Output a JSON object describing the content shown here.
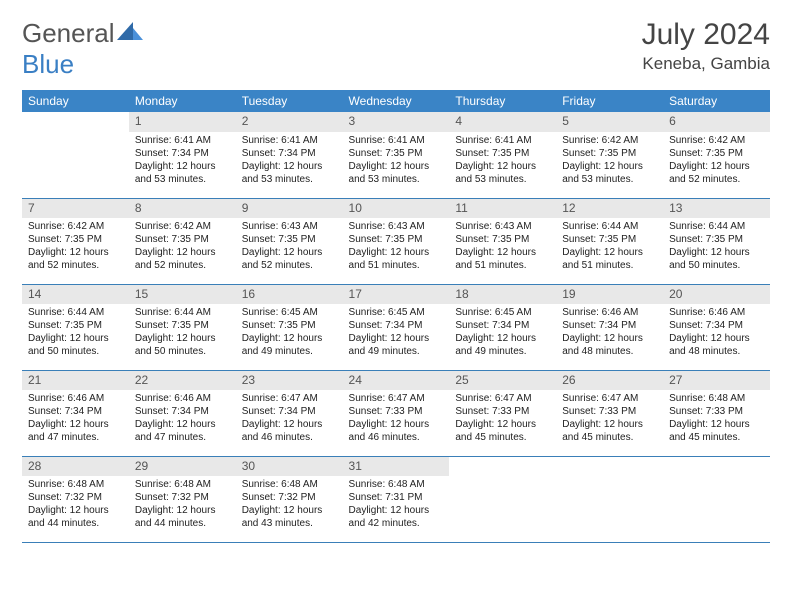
{
  "brand": {
    "name_part1": "General",
    "name_part2": "Blue"
  },
  "title": "July 2024",
  "location": "Keneba, Gambia",
  "colors": {
    "header_bg": "#3a84c6",
    "header_text": "#ffffff",
    "daynum_bg": "#e8e8e8",
    "daynum_text": "#555555",
    "row_border": "#3a7fb8",
    "body_text": "#222222",
    "brand_gray": "#555555",
    "brand_blue": "#3a7fc4"
  },
  "weekdays": [
    "Sunday",
    "Monday",
    "Tuesday",
    "Wednesday",
    "Thursday",
    "Friday",
    "Saturday"
  ],
  "weeks": [
    [
      null,
      {
        "n": "1",
        "sr": "Sunrise: 6:41 AM",
        "ss": "Sunset: 7:34 PM",
        "d1": "Daylight: 12 hours",
        "d2": "and 53 minutes."
      },
      {
        "n": "2",
        "sr": "Sunrise: 6:41 AM",
        "ss": "Sunset: 7:34 PM",
        "d1": "Daylight: 12 hours",
        "d2": "and 53 minutes."
      },
      {
        "n": "3",
        "sr": "Sunrise: 6:41 AM",
        "ss": "Sunset: 7:35 PM",
        "d1": "Daylight: 12 hours",
        "d2": "and 53 minutes."
      },
      {
        "n": "4",
        "sr": "Sunrise: 6:41 AM",
        "ss": "Sunset: 7:35 PM",
        "d1": "Daylight: 12 hours",
        "d2": "and 53 minutes."
      },
      {
        "n": "5",
        "sr": "Sunrise: 6:42 AM",
        "ss": "Sunset: 7:35 PM",
        "d1": "Daylight: 12 hours",
        "d2": "and 53 minutes."
      },
      {
        "n": "6",
        "sr": "Sunrise: 6:42 AM",
        "ss": "Sunset: 7:35 PM",
        "d1": "Daylight: 12 hours",
        "d2": "and 52 minutes."
      }
    ],
    [
      {
        "n": "7",
        "sr": "Sunrise: 6:42 AM",
        "ss": "Sunset: 7:35 PM",
        "d1": "Daylight: 12 hours",
        "d2": "and 52 minutes."
      },
      {
        "n": "8",
        "sr": "Sunrise: 6:42 AM",
        "ss": "Sunset: 7:35 PM",
        "d1": "Daylight: 12 hours",
        "d2": "and 52 minutes."
      },
      {
        "n": "9",
        "sr": "Sunrise: 6:43 AM",
        "ss": "Sunset: 7:35 PM",
        "d1": "Daylight: 12 hours",
        "d2": "and 52 minutes."
      },
      {
        "n": "10",
        "sr": "Sunrise: 6:43 AM",
        "ss": "Sunset: 7:35 PM",
        "d1": "Daylight: 12 hours",
        "d2": "and 51 minutes."
      },
      {
        "n": "11",
        "sr": "Sunrise: 6:43 AM",
        "ss": "Sunset: 7:35 PM",
        "d1": "Daylight: 12 hours",
        "d2": "and 51 minutes."
      },
      {
        "n": "12",
        "sr": "Sunrise: 6:44 AM",
        "ss": "Sunset: 7:35 PM",
        "d1": "Daylight: 12 hours",
        "d2": "and 51 minutes."
      },
      {
        "n": "13",
        "sr": "Sunrise: 6:44 AM",
        "ss": "Sunset: 7:35 PM",
        "d1": "Daylight: 12 hours",
        "d2": "and 50 minutes."
      }
    ],
    [
      {
        "n": "14",
        "sr": "Sunrise: 6:44 AM",
        "ss": "Sunset: 7:35 PM",
        "d1": "Daylight: 12 hours",
        "d2": "and 50 minutes."
      },
      {
        "n": "15",
        "sr": "Sunrise: 6:44 AM",
        "ss": "Sunset: 7:35 PM",
        "d1": "Daylight: 12 hours",
        "d2": "and 50 minutes."
      },
      {
        "n": "16",
        "sr": "Sunrise: 6:45 AM",
        "ss": "Sunset: 7:35 PM",
        "d1": "Daylight: 12 hours",
        "d2": "and 49 minutes."
      },
      {
        "n": "17",
        "sr": "Sunrise: 6:45 AM",
        "ss": "Sunset: 7:34 PM",
        "d1": "Daylight: 12 hours",
        "d2": "and 49 minutes."
      },
      {
        "n": "18",
        "sr": "Sunrise: 6:45 AM",
        "ss": "Sunset: 7:34 PM",
        "d1": "Daylight: 12 hours",
        "d2": "and 49 minutes."
      },
      {
        "n": "19",
        "sr": "Sunrise: 6:46 AM",
        "ss": "Sunset: 7:34 PM",
        "d1": "Daylight: 12 hours",
        "d2": "and 48 minutes."
      },
      {
        "n": "20",
        "sr": "Sunrise: 6:46 AM",
        "ss": "Sunset: 7:34 PM",
        "d1": "Daylight: 12 hours",
        "d2": "and 48 minutes."
      }
    ],
    [
      {
        "n": "21",
        "sr": "Sunrise: 6:46 AM",
        "ss": "Sunset: 7:34 PM",
        "d1": "Daylight: 12 hours",
        "d2": "and 47 minutes."
      },
      {
        "n": "22",
        "sr": "Sunrise: 6:46 AM",
        "ss": "Sunset: 7:34 PM",
        "d1": "Daylight: 12 hours",
        "d2": "and 47 minutes."
      },
      {
        "n": "23",
        "sr": "Sunrise: 6:47 AM",
        "ss": "Sunset: 7:34 PM",
        "d1": "Daylight: 12 hours",
        "d2": "and 46 minutes."
      },
      {
        "n": "24",
        "sr": "Sunrise: 6:47 AM",
        "ss": "Sunset: 7:33 PM",
        "d1": "Daylight: 12 hours",
        "d2": "and 46 minutes."
      },
      {
        "n": "25",
        "sr": "Sunrise: 6:47 AM",
        "ss": "Sunset: 7:33 PM",
        "d1": "Daylight: 12 hours",
        "d2": "and 45 minutes."
      },
      {
        "n": "26",
        "sr": "Sunrise: 6:47 AM",
        "ss": "Sunset: 7:33 PM",
        "d1": "Daylight: 12 hours",
        "d2": "and 45 minutes."
      },
      {
        "n": "27",
        "sr": "Sunrise: 6:48 AM",
        "ss": "Sunset: 7:33 PM",
        "d1": "Daylight: 12 hours",
        "d2": "and 45 minutes."
      }
    ],
    [
      {
        "n": "28",
        "sr": "Sunrise: 6:48 AM",
        "ss": "Sunset: 7:32 PM",
        "d1": "Daylight: 12 hours",
        "d2": "and 44 minutes."
      },
      {
        "n": "29",
        "sr": "Sunrise: 6:48 AM",
        "ss": "Sunset: 7:32 PM",
        "d1": "Daylight: 12 hours",
        "d2": "and 44 minutes."
      },
      {
        "n": "30",
        "sr": "Sunrise: 6:48 AM",
        "ss": "Sunset: 7:32 PM",
        "d1": "Daylight: 12 hours",
        "d2": "and 43 minutes."
      },
      {
        "n": "31",
        "sr": "Sunrise: 6:48 AM",
        "ss": "Sunset: 7:31 PM",
        "d1": "Daylight: 12 hours",
        "d2": "and 42 minutes."
      },
      null,
      null,
      null
    ]
  ]
}
